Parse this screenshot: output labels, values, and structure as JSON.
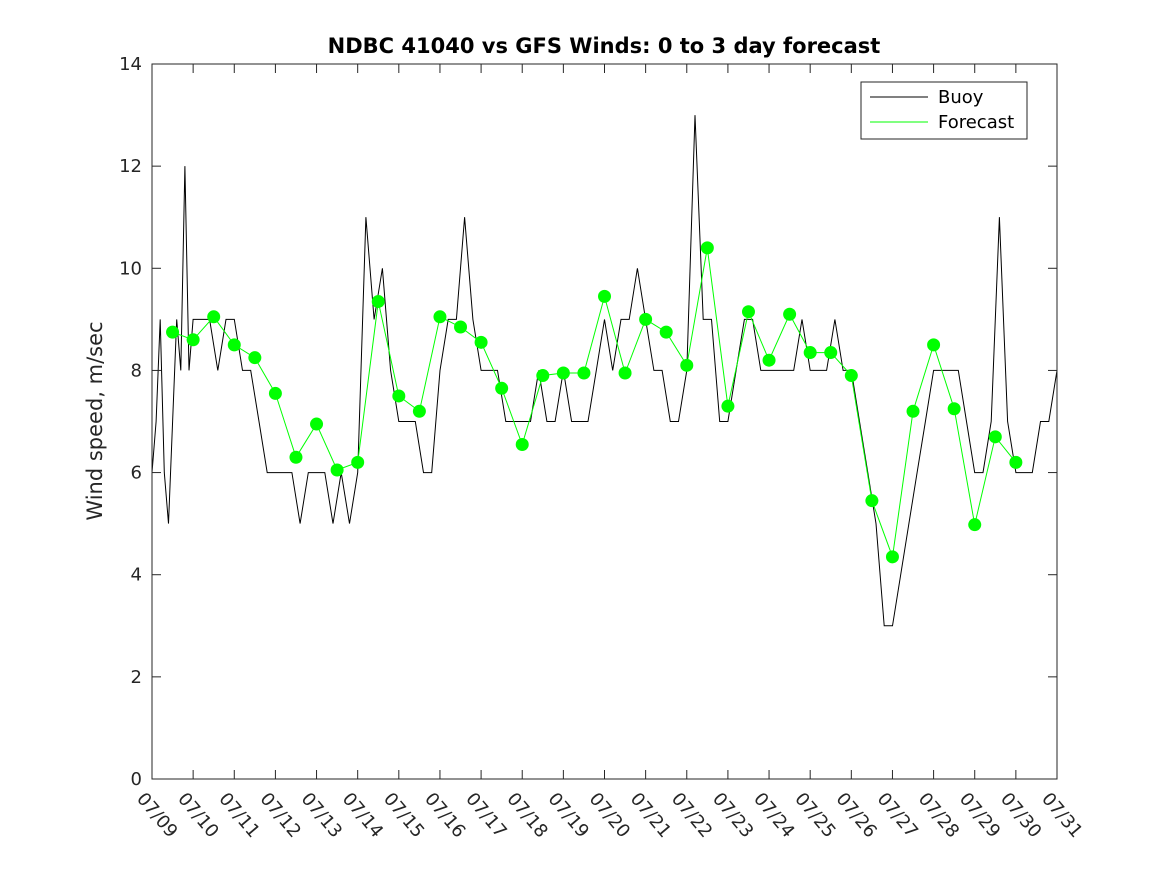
{
  "chart_data": {
    "type": "line",
    "title": "NDBC 41040 vs GFS Winds: 0 to 3 day forecast",
    "xlabel": "",
    "ylabel": "Wind speed, m/sec",
    "xlim": [
      "07/09",
      "07/31"
    ],
    "ylim": [
      0,
      14
    ],
    "yticks": [
      0,
      2,
      4,
      6,
      8,
      10,
      12,
      14
    ],
    "xtick_labels": [
      "07/09",
      "07/10",
      "07/11",
      "07/12",
      "07/13",
      "07/14",
      "07/15",
      "07/16",
      "07/17",
      "07/18",
      "07/19",
      "07/20",
      "07/21",
      "07/22",
      "07/23",
      "07/24",
      "07/25",
      "07/26",
      "07/27",
      "07/28",
      "07/29",
      "07/30",
      "07/31"
    ],
    "grid": false,
    "legend_position": "top-right",
    "colors": {
      "buoy": "#000000",
      "forecast": "#00ff00",
      "marker": "#00ff00"
    },
    "series": [
      {
        "name": "Buoy",
        "x_day_of_july": [
          9.0,
          9.1,
          9.2,
          9.3,
          9.4,
          9.5,
          9.6,
          9.7,
          9.8,
          9.9,
          10.0,
          10.2,
          10.4,
          10.6,
          10.8,
          11.0,
          11.2,
          11.4,
          11.6,
          11.8,
          12.0,
          12.2,
          12.4,
          12.6,
          12.8,
          13.0,
          13.2,
          13.4,
          13.6,
          13.8,
          14.0,
          14.2,
          14.4,
          14.6,
          14.8,
          15.0,
          15.2,
          15.4,
          15.6,
          15.8,
          16.0,
          16.2,
          16.4,
          16.6,
          16.8,
          17.0,
          17.2,
          17.4,
          17.6,
          17.8,
          18.0,
          18.2,
          18.4,
          18.6,
          18.8,
          19.0,
          19.2,
          19.4,
          19.6,
          19.8,
          20.0,
          20.2,
          20.4,
          20.6,
          20.8,
          21.0,
          21.2,
          21.4,
          21.6,
          21.8,
          22.0,
          22.2,
          22.4,
          22.6,
          22.8,
          23.0,
          23.2,
          23.4,
          23.6,
          23.8,
          24.0,
          24.2,
          24.4,
          24.6,
          24.8,
          25.0,
          25.2,
          25.4,
          25.6,
          25.8,
          26.0,
          26.2,
          26.4,
          26.6,
          26.8,
          27.0,
          27.2,
          27.4,
          27.6,
          27.8,
          28.0,
          28.2,
          28.4,
          28.6,
          28.8,
          29.0,
          29.2,
          29.4,
          29.6,
          29.8,
          30.0,
          30.2,
          30.4,
          30.6,
          30.8,
          31.0
        ],
        "values": [
          6,
          7,
          9,
          6,
          5,
          7,
          9,
          8,
          12,
          8,
          9,
          9,
          9,
          8,
          9,
          9,
          8,
          8,
          7,
          6,
          6,
          6,
          6,
          5,
          6,
          6,
          6,
          5,
          6,
          5,
          6,
          11,
          9,
          10,
          8,
          7,
          7,
          7,
          6,
          6,
          8,
          9,
          9,
          11,
          9,
          8,
          8,
          8,
          7,
          7,
          7,
          7,
          8,
          7,
          7,
          8,
          7,
          7,
          7,
          8,
          9,
          8,
          9,
          9,
          10,
          9,
          8,
          8,
          7,
          7,
          8,
          13,
          9,
          9,
          7,
          7,
          8,
          9,
          9,
          8,
          8,
          8,
          8,
          8,
          9,
          8,
          8,
          8,
          9,
          8,
          8,
          7,
          6,
          5,
          3,
          3,
          4,
          5,
          6,
          7,
          8,
          8,
          8,
          8,
          7,
          6,
          6,
          7,
          11,
          7,
          6,
          6,
          6,
          7,
          7,
          8
        ]
      },
      {
        "name": "Forecast",
        "x_day_of_july": [
          9.5,
          10.0,
          10.5,
          11.0,
          11.5,
          12.0,
          12.5,
          13.0,
          13.5,
          14.0,
          14.5,
          15.0,
          15.5,
          16.0,
          16.5,
          17.0,
          17.5,
          18.0,
          18.5,
          19.0,
          19.5,
          20.0,
          20.5,
          21.0,
          21.5,
          22.0,
          22.5,
          23.0,
          23.5,
          24.0,
          24.5,
          25.0,
          25.5,
          26.0,
          26.5,
          27.0,
          27.5,
          28.0,
          28.5,
          29.0,
          29.5,
          30.0
        ],
        "values": [
          8.75,
          8.6,
          9.05,
          8.5,
          8.25,
          7.55,
          6.3,
          6.95,
          6.05,
          6.2,
          9.35,
          7.5,
          7.2,
          9.05,
          8.85,
          8.55,
          7.65,
          6.55,
          7.9,
          7.95,
          7.95,
          9.45,
          7.95,
          9.0,
          8.75,
          8.1,
          10.4,
          7.3,
          9.15,
          8.2,
          9.1,
          8.35,
          8.35,
          7.9,
          5.45,
          4.35,
          7.2,
          8.5,
          7.25,
          4.98,
          6.7,
          6.2
        ]
      }
    ]
  }
}
